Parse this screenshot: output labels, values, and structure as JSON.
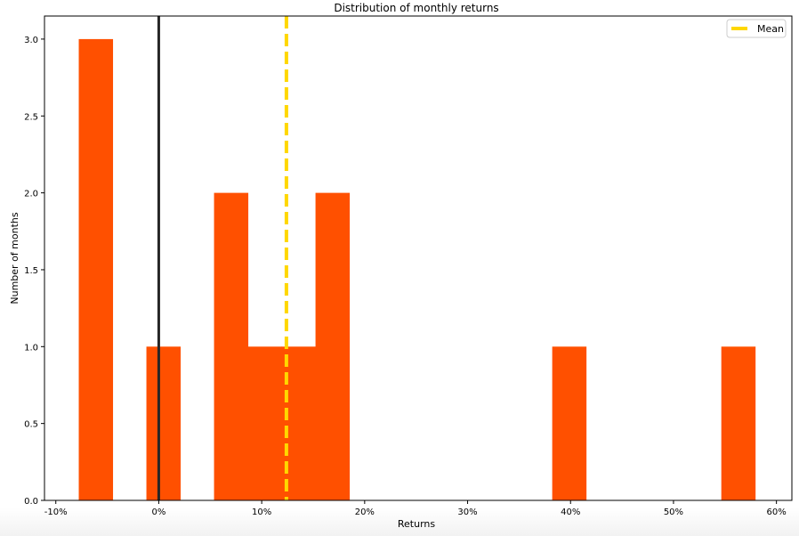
{
  "chart_data": {
    "type": "bar",
    "title": "Distribution of monthly returns",
    "xlabel": "Returns",
    "ylabel": "Number of months",
    "xlim": [
      -11.1,
      61.5
    ],
    "ylim": [
      0,
      3.15
    ],
    "xticks": [
      -10,
      0,
      10,
      20,
      30,
      40,
      50,
      60
    ],
    "xtick_labels": [
      "-10%",
      "0%",
      "10%",
      "20%",
      "30%",
      "40%",
      "50%",
      "60%"
    ],
    "yticks": [
      0,
      0.5,
      1,
      1.5,
      2,
      2.5,
      3
    ],
    "ytick_labels": [
      "0.0",
      "0.5",
      "1.0",
      "1.5",
      "2.0",
      "2.5",
      "3.0"
    ],
    "bin_start": -7.77,
    "bin_width": 3.285,
    "counts": [
      3,
      0,
      1,
      0,
      2,
      1,
      1,
      2,
      0,
      0,
      0,
      0,
      0,
      0,
      1,
      0,
      0,
      0,
      0,
      1
    ],
    "bar_color": "#ff5000",
    "zero_line": {
      "x": 0,
      "color": "#262626"
    },
    "mean_line": {
      "x": 12.4,
      "color": "#ffd700",
      "label": "Mean"
    },
    "legend": {
      "placement": "top-right",
      "entries": [
        "Mean"
      ]
    },
    "grid": false
  }
}
